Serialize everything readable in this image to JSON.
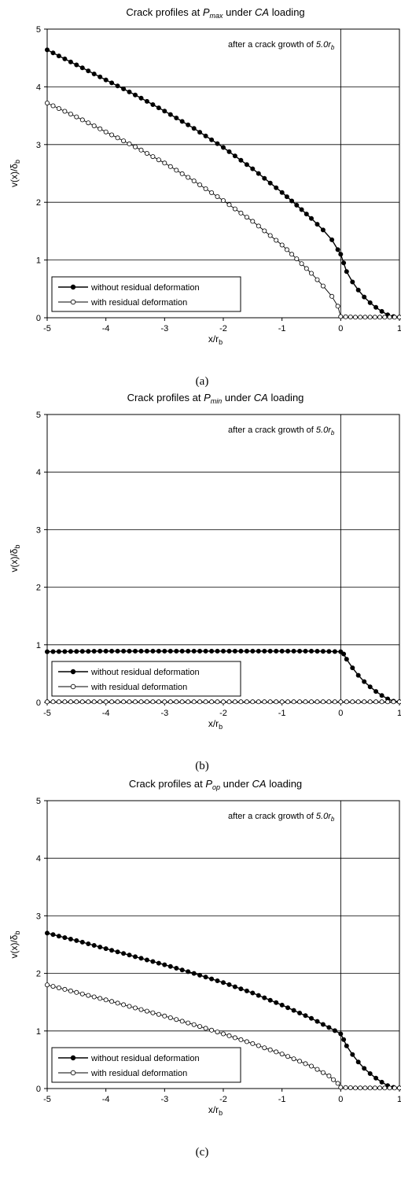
{
  "charts": [
    {
      "title_pre": "Crack profiles at ",
      "title_sym": "P",
      "title_sub": "max",
      "title_mid": " under ",
      "title_ital": "CA",
      "title_post": " loading",
      "annotation_pre": "after a crack growth of ",
      "annotation_val": "5.0r",
      "annotation_sub": "b",
      "ylabel_main": "v(x)/δ",
      "ylabel_sub": "b",
      "xlabel_main": "x/r",
      "xlabel_sub": "b",
      "caption": "(a)",
      "xticks": [
        "-5",
        "-4",
        "-3",
        "-2",
        "-1",
        "0",
        "1"
      ],
      "yticks": [
        "0",
        "1",
        "2",
        "3",
        "4",
        "5"
      ],
      "legend": [
        "without residual deformation",
        "with residual deformation"
      ]
    },
    {
      "title_pre": "Crack profiles at ",
      "title_sym": "P",
      "title_sub": "min",
      "title_mid": " under ",
      "title_ital": "CA",
      "title_post": " loading",
      "annotation_pre": "after a crack growth of ",
      "annotation_val": "5.0r",
      "annotation_sub": "b",
      "ylabel_main": "v(x)/δ",
      "ylabel_sub": "b",
      "xlabel_main": "x/r",
      "xlabel_sub": "b",
      "caption": "(b)",
      "xticks": [
        "-5",
        "-4",
        "-3",
        "-2",
        "-1",
        "0",
        "1"
      ],
      "yticks": [
        "0",
        "1",
        "2",
        "3",
        "4",
        "5"
      ],
      "legend": [
        "without residual deformation",
        "with residual deformation"
      ]
    },
    {
      "title_pre": "Crack profiles at ",
      "title_sym": "P",
      "title_sub": "op",
      "title_mid": " under ",
      "title_ital": "CA",
      "title_post": " loading",
      "annotation_pre": "after a crack growth of ",
      "annotation_val": "5.0r",
      "annotation_sub": "b",
      "ylabel_main": "v(x)/δ",
      "ylabel_sub": "b",
      "xlabel_main": "x/r",
      "xlabel_sub": "b",
      "caption": "(c)",
      "xticks": [
        "-5",
        "-4",
        "-3",
        "-2",
        "-1",
        "0",
        "1"
      ],
      "yticks": [
        "0",
        "1",
        "2",
        "3",
        "4",
        "5"
      ],
      "legend": [
        "without residual deformation",
        "with residual deformation"
      ]
    }
  ],
  "chart_data": [
    {
      "type": "scatter",
      "xlim": [
        -5,
        1
      ],
      "ylim": [
        0,
        5
      ],
      "grid": "horizontal",
      "legend_position": "bottom-left",
      "series": [
        {
          "name": "without residual deformation",
          "marker": "filled-circle",
          "color": "#000000",
          "points": [
            [
              -5,
              4.64
            ],
            [
              -4.5,
              4.38
            ],
            [
              -4,
              4.12
            ],
            [
              -3.5,
              3.86
            ],
            [
              -3,
              3.58
            ],
            [
              -2.5,
              3.28
            ],
            [
              -2,
              2.95
            ],
            [
              -1.5,
              2.58
            ],
            [
              -1,
              2.17
            ],
            [
              -0.75,
              1.95
            ],
            [
              -0.5,
              1.72
            ],
            [
              -0.3,
              1.52
            ],
            [
              -0.15,
              1.35
            ],
            [
              -0.05,
              1.18
            ],
            [
              0,
              1.1
            ],
            [
              0.05,
              0.95
            ],
            [
              0.1,
              0.8
            ],
            [
              0.2,
              0.62
            ],
            [
              0.3,
              0.48
            ],
            [
              0.4,
              0.36
            ],
            [
              0.5,
              0.26
            ],
            [
              0.6,
              0.18
            ],
            [
              0.7,
              0.11
            ],
            [
              0.8,
              0.05
            ],
            [
              0.9,
              0.02
            ],
            [
              1,
              0.01
            ]
          ]
        },
        {
          "name": "with residual deformation",
          "marker": "open-circle",
          "color": "#000000",
          "points": [
            [
              -5,
              3.72
            ],
            [
              -4.5,
              3.48
            ],
            [
              -4,
              3.22
            ],
            [
              -3.5,
              2.96
            ],
            [
              -3,
              2.68
            ],
            [
              -2.5,
              2.37
            ],
            [
              -2,
              2.03
            ],
            [
              -1.5,
              1.67
            ],
            [
              -1,
              1.26
            ],
            [
              -0.75,
              1.02
            ],
            [
              -0.5,
              0.77
            ],
            [
              -0.3,
              0.55
            ],
            [
              -0.15,
              0.37
            ],
            [
              -0.05,
              0.2
            ],
            [
              0,
              0.02
            ],
            [
              0.25,
              0.01
            ],
            [
              0.5,
              0.01
            ],
            [
              0.75,
              0.01
            ],
            [
              1,
              0.01
            ]
          ]
        }
      ]
    },
    {
      "type": "scatter",
      "xlim": [
        -5,
        1
      ],
      "ylim": [
        0,
        5
      ],
      "grid": "horizontal",
      "legend_position": "bottom-left",
      "series": [
        {
          "name": "without residual deformation",
          "marker": "filled-circle",
          "color": "#000000",
          "points": [
            [
              -5,
              0.88
            ],
            [
              -4,
              0.89
            ],
            [
              -3,
              0.89
            ],
            [
              -2,
              0.89
            ],
            [
              -1,
              0.89
            ],
            [
              -0.5,
              0.89
            ],
            [
              0,
              0.88
            ],
            [
              0.05,
              0.84
            ],
            [
              0.1,
              0.75
            ],
            [
              0.2,
              0.6
            ],
            [
              0.3,
              0.47
            ],
            [
              0.4,
              0.36
            ],
            [
              0.5,
              0.27
            ],
            [
              0.6,
              0.19
            ],
            [
              0.7,
              0.12
            ],
            [
              0.8,
              0.06
            ],
            [
              0.9,
              0.02
            ],
            [
              1,
              0.01
            ]
          ]
        },
        {
          "name": "with residual deformation",
          "marker": "open-circle",
          "color": "#000000",
          "points": [
            [
              -5,
              0.01
            ],
            [
              -4,
              0.01
            ],
            [
              -3,
              0.01
            ],
            [
              -2,
              0.01
            ],
            [
              -1,
              0.01
            ],
            [
              0,
              0.01
            ],
            [
              0.5,
              0.01
            ],
            [
              1,
              0.01
            ]
          ]
        }
      ]
    },
    {
      "type": "scatter",
      "xlim": [
        -5,
        1
      ],
      "ylim": [
        0,
        5
      ],
      "grid": "horizontal",
      "legend_position": "bottom-left",
      "series": [
        {
          "name": "without residual deformation",
          "marker": "filled-circle",
          "color": "#000000",
          "points": [
            [
              -5,
              2.7
            ],
            [
              -4.5,
              2.57
            ],
            [
              -4,
              2.43
            ],
            [
              -3.5,
              2.29
            ],
            [
              -3,
              2.15
            ],
            [
              -2.5,
              2.0
            ],
            [
              -2,
              1.84
            ],
            [
              -1.5,
              1.66
            ],
            [
              -1,
              1.45
            ],
            [
              -0.5,
              1.22
            ],
            [
              -0.2,
              1.06
            ],
            [
              0,
              0.95
            ],
            [
              0.05,
              0.85
            ],
            [
              0.1,
              0.74
            ],
            [
              0.2,
              0.59
            ],
            [
              0.3,
              0.46
            ],
            [
              0.4,
              0.35
            ],
            [
              0.5,
              0.26
            ],
            [
              0.6,
              0.18
            ],
            [
              0.7,
              0.11
            ],
            [
              0.8,
              0.05
            ],
            [
              0.9,
              0.02
            ],
            [
              1,
              0.01
            ]
          ]
        },
        {
          "name": "with residual deformation",
          "marker": "open-circle",
          "color": "#000000",
          "points": [
            [
              -5,
              1.8
            ],
            [
              -4.5,
              1.67
            ],
            [
              -4,
              1.54
            ],
            [
              -3.5,
              1.4
            ],
            [
              -3,
              1.26
            ],
            [
              -2.5,
              1.11
            ],
            [
              -2,
              0.95
            ],
            [
              -1.5,
              0.78
            ],
            [
              -1,
              0.6
            ],
            [
              -0.5,
              0.39
            ],
            [
              -0.2,
              0.22
            ],
            [
              -0.05,
              0.09
            ],
            [
              0,
              0.02
            ],
            [
              0.25,
              0.01
            ],
            [
              0.5,
              0.01
            ],
            [
              0.75,
              0.01
            ],
            [
              1,
              0.01
            ]
          ]
        }
      ]
    }
  ]
}
